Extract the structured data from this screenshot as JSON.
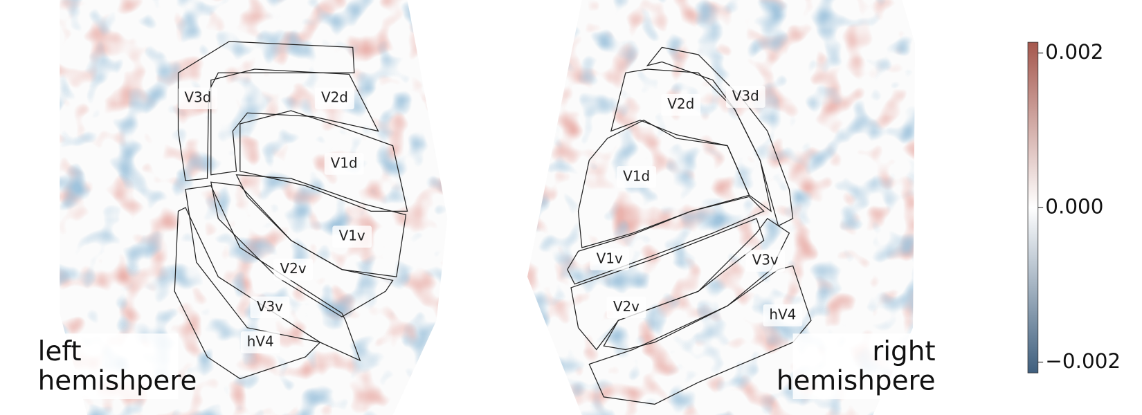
{
  "left_hemisphere": {
    "label_lines": [
      "left",
      "hemishpere"
    ],
    "regions": [
      "V3d",
      "V2d",
      "V1d",
      "V1v",
      "V2v",
      "V3v",
      "hV4"
    ]
  },
  "right_hemisphere": {
    "label_lines": [
      "right",
      "hemishpere"
    ],
    "regions": [
      "V2d",
      "V3d",
      "V1d",
      "V1v",
      "V3v",
      "V2v",
      "hV4"
    ]
  },
  "colorbar": {
    "lim": [
      -0.00214,
      0.00214
    ],
    "colors": [
      "#3f5f7e",
      "#ffffff",
      "#a5574d"
    ],
    "ticks": [
      {
        "value": 0.002,
        "label": "0.002"
      },
      {
        "value": 0,
        "label": "0.000"
      },
      {
        "value": -0.002,
        "label": "−0.002"
      }
    ]
  }
}
